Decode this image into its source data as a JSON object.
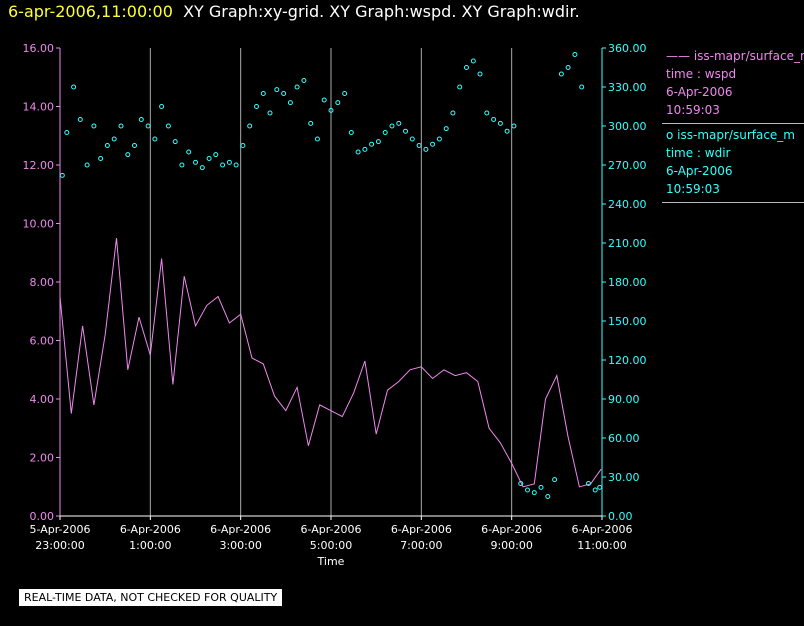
{
  "header": {
    "timestamp": "6-apr-2006,11:00:00",
    "titles": "XY Graph:xy-grid.  XY Graph:wspd.  XY Graph:wdir."
  },
  "colors": {
    "background": "#000000",
    "wspd": "#ee88ee",
    "wdir": "#33ffff",
    "grid": "#aaaaaa",
    "axis_text": "#ffffff",
    "timestamp": "#ffff33"
  },
  "legend": [
    {
      "series": "iss-mapr/surface_m",
      "symbol": "——",
      "time_label": "time : wspd",
      "date": "6-Apr-2006",
      "time": "10:59:03"
    },
    {
      "series": "iss-mapr/surface_m",
      "symbol": "o",
      "time_label": "time : wdir",
      "date": "6-Apr-2006",
      "time": "10:59:03"
    }
  ],
  "footer": {
    "notice": "REAL-TIME DATA, NOT CHECKED FOR QUALITY"
  },
  "chart_data": {
    "type": "line",
    "xlabel": "Time",
    "x_ticks": [
      {
        "date": "5-Apr-2006",
        "time": "23:00:00"
      },
      {
        "date": "6-Apr-2006",
        "time": "1:00:00"
      },
      {
        "date": "6-Apr-2006",
        "time": "3:00:00"
      },
      {
        "date": "6-Apr-2006",
        "time": "5:00:00"
      },
      {
        "date": "6-Apr-2006",
        "time": "7:00:00"
      },
      {
        "date": "6-Apr-2006",
        "time": "9:00:00"
      },
      {
        "date": "6-Apr-2006",
        "time": "11:00:00"
      }
    ],
    "xlim_hours": [
      23.0,
      35.0
    ],
    "y_left": {
      "ylim": [
        0,
        16
      ],
      "ticks": [
        "0.00",
        "2.00",
        "4.00",
        "6.00",
        "8.00",
        "10.00",
        "12.00",
        "14.00",
        "16.00"
      ]
    },
    "y_right": {
      "ylim": [
        0,
        360
      ],
      "ticks": [
        "0.00",
        "30.00",
        "60.00",
        "90.00",
        "120.00",
        "150.00",
        "180.00",
        "210.00",
        "240.00",
        "270.00",
        "300.00",
        "330.00",
        "360.00"
      ]
    },
    "grid": "vertical",
    "series": [
      {
        "key": "wspd",
        "axis": "left",
        "style": "line",
        "x": [
          23.0,
          23.25,
          23.5,
          23.75,
          24.0,
          24.25,
          24.5,
          24.75,
          25.0,
          25.25,
          25.5,
          25.75,
          26.0,
          26.25,
          26.5,
          26.75,
          27.0,
          27.25,
          27.5,
          27.75,
          28.0,
          28.25,
          28.5,
          28.75,
          29.0,
          29.25,
          29.5,
          29.75,
          30.0,
          30.25,
          30.5,
          30.75,
          31.0,
          31.25,
          31.5,
          31.75,
          32.0,
          32.25,
          32.5,
          32.75,
          33.0,
          33.25,
          33.5,
          33.75,
          34.0,
          34.25,
          34.5,
          34.75,
          34.98
        ],
        "y": [
          7.5,
          3.5,
          6.5,
          3.8,
          6.2,
          9.5,
          5.0,
          6.8,
          5.5,
          8.8,
          4.5,
          8.2,
          6.5,
          7.2,
          7.5,
          6.6,
          6.9,
          5.4,
          5.2,
          4.1,
          3.6,
          4.4,
          2.4,
          3.8,
          3.6,
          3.4,
          4.2,
          5.3,
          2.8,
          4.3,
          4.6,
          5.0,
          5.1,
          4.7,
          5.0,
          4.8,
          4.9,
          4.6,
          3.0,
          2.5,
          1.8,
          1.0,
          1.1,
          4.0,
          4.8,
          2.7,
          1.0,
          1.1,
          1.6
        ]
      },
      {
        "key": "wdir",
        "axis": "right",
        "style": "circles",
        "x": [
          23.05,
          23.15,
          23.3,
          23.45,
          23.6,
          23.75,
          23.9,
          24.05,
          24.2,
          24.35,
          24.5,
          24.65,
          24.8,
          24.95,
          25.1,
          25.25,
          25.4,
          25.55,
          25.7,
          25.85,
          26.0,
          26.15,
          26.3,
          26.45,
          26.6,
          26.75,
          26.9,
          27.05,
          27.2,
          27.35,
          27.5,
          27.65,
          27.8,
          27.95,
          28.1,
          28.25,
          28.4,
          28.55,
          28.7,
          28.85,
          29.0,
          29.15,
          29.3,
          29.45,
          29.6,
          29.75,
          29.9,
          30.05,
          30.2,
          30.35,
          30.5,
          30.65,
          30.8,
          30.95,
          31.1,
          31.25,
          31.4,
          31.55,
          31.7,
          31.85,
          32.0,
          32.15,
          32.3,
          32.45,
          32.6,
          32.75,
          32.9,
          33.05,
          33.2,
          33.35,
          33.5,
          33.65,
          33.8,
          33.95,
          34.1,
          34.25,
          34.4,
          34.55,
          34.7,
          34.85,
          34.95
        ],
        "y": [
          262,
          295,
          330,
          305,
          270,
          300,
          275,
          285,
          290,
          300,
          278,
          285,
          305,
          300,
          290,
          315,
          300,
          288,
          270,
          280,
          272,
          268,
          275,
          278,
          270,
          272,
          270,
          285,
          300,
          315,
          325,
          310,
          328,
          325,
          318,
          330,
          335,
          302,
          290,
          320,
          312,
          318,
          325,
          295,
          280,
          282,
          286,
          288,
          295,
          300,
          302,
          296,
          290,
          285,
          282,
          286,
          290,
          298,
          310,
          330,
          345,
          350,
          340,
          310,
          305,
          302,
          296,
          300,
          25,
          20,
          18,
          22,
          15,
          28,
          340,
          345,
          355,
          330,
          25,
          20,
          22
        ]
      }
    ]
  }
}
